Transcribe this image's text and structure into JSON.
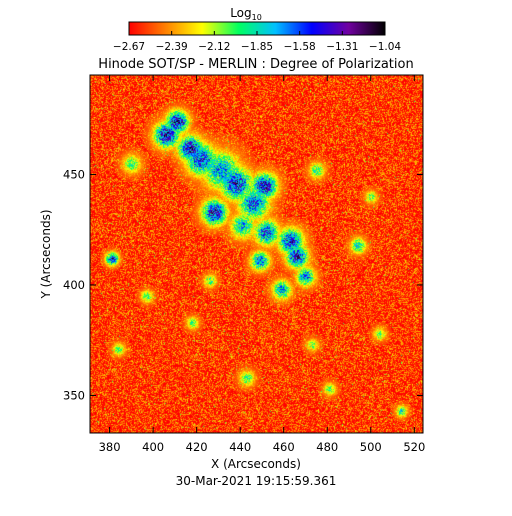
{
  "chart_data": {
    "type": "heatmap",
    "title": "Hinode SOT/SP - MERLIN : Degree of Polarization",
    "xlabel": "X (Arcseconds)",
    "ylabel": "Y (Arcseconds)",
    "timestamp": "30-Mar-2021 19:15:59.361",
    "colorbar": {
      "label_main": "Log",
      "label_sub": "10",
      "range": [
        -2.67,
        -1.04
      ],
      "tick_labels": [
        "−2.67",
        "−2.39",
        "−2.12",
        "−1.85",
        "−1.58",
        "−1.31",
        "−1.04"
      ],
      "colors": [
        "#ff0000",
        "#ff8000",
        "#ffff00",
        "#00ff60",
        "#00c0ff",
        "#0000ff",
        "#7000a0",
        "#000000"
      ]
    },
    "xlim": [
      371,
      524
    ],
    "ylim": [
      333,
      495
    ],
    "x_ticks": [
      380,
      400,
      420,
      440,
      460,
      480,
      500,
      520
    ],
    "x_tick_labels": [
      "380",
      "400",
      "420",
      "440",
      "460",
      "480",
      "500",
      "520"
    ],
    "y_ticks": [
      350,
      400,
      450
    ],
    "y_tick_labels": [
      "350",
      "400",
      "450"
    ],
    "grid": false,
    "field_background_log10": -2.6,
    "high_polarization_features": [
      {
        "x": 406,
        "y": 468,
        "peak_log10": -1.25,
        "sigma": 4.0
      },
      {
        "x": 411,
        "y": 474,
        "peak_log10": -1.2,
        "sigma": 3.5
      },
      {
        "x": 417,
        "y": 462,
        "peak_log10": -1.25,
        "sigma": 4.0
      },
      {
        "x": 422,
        "y": 457,
        "peak_log10": -1.4,
        "sigma": 5.0
      },
      {
        "x": 431,
        "y": 452,
        "peak_log10": -1.6,
        "sigma": 6.0
      },
      {
        "x": 438,
        "y": 446,
        "peak_log10": -1.3,
        "sigma": 5.0
      },
      {
        "x": 451,
        "y": 445,
        "peak_log10": -1.25,
        "sigma": 4.0
      },
      {
        "x": 446,
        "y": 437,
        "peak_log10": -1.5,
        "sigma": 5.0
      },
      {
        "x": 428,
        "y": 433,
        "peak_log10": -1.3,
        "sigma": 4.0
      },
      {
        "x": 441,
        "y": 427,
        "peak_log10": -1.7,
        "sigma": 4.0
      },
      {
        "x": 452,
        "y": 424,
        "peak_log10": -1.45,
        "sigma": 4.0
      },
      {
        "x": 463,
        "y": 420,
        "peak_log10": -1.35,
        "sigma": 4.0
      },
      {
        "x": 466,
        "y": 413,
        "peak_log10": -1.3,
        "sigma": 3.5
      },
      {
        "x": 449,
        "y": 411,
        "peak_log10": -1.5,
        "sigma": 3.0
      },
      {
        "x": 470,
        "y": 404,
        "peak_log10": -1.55,
        "sigma": 3.0
      },
      {
        "x": 459,
        "y": 398,
        "peak_log10": -1.6,
        "sigma": 3.0
      },
      {
        "x": 381,
        "y": 412,
        "peak_log10": -1.3,
        "sigma": 2.0
      },
      {
        "x": 494,
        "y": 418,
        "peak_log10": -1.75,
        "sigma": 2.5
      },
      {
        "x": 390,
        "y": 455,
        "peak_log10": -1.9,
        "sigma": 3.0
      },
      {
        "x": 475,
        "y": 452,
        "peak_log10": -1.85,
        "sigma": 2.5
      },
      {
        "x": 443,
        "y": 358,
        "peak_log10": -1.9,
        "sigma": 2.5
      },
      {
        "x": 504,
        "y": 378,
        "peak_log10": -1.9,
        "sigma": 2.0
      },
      {
        "x": 514,
        "y": 343,
        "peak_log10": -1.8,
        "sigma": 1.8
      },
      {
        "x": 481,
        "y": 353,
        "peak_log10": -1.9,
        "sigma": 2.0
      },
      {
        "x": 397,
        "y": 395,
        "peak_log10": -1.9,
        "sigma": 2.0
      },
      {
        "x": 384,
        "y": 371,
        "peak_log10": -1.95,
        "sigma": 2.0
      },
      {
        "x": 418,
        "y": 383,
        "peak_log10": -1.95,
        "sigma": 2.0
      },
      {
        "x": 426,
        "y": 402,
        "peak_log10": -1.85,
        "sigma": 2.0
      },
      {
        "x": 500,
        "y": 440,
        "peak_log10": -1.95,
        "sigma": 2.0
      },
      {
        "x": 473,
        "y": 373,
        "peak_log10": -2.0,
        "sigma": 2.0
      }
    ]
  }
}
